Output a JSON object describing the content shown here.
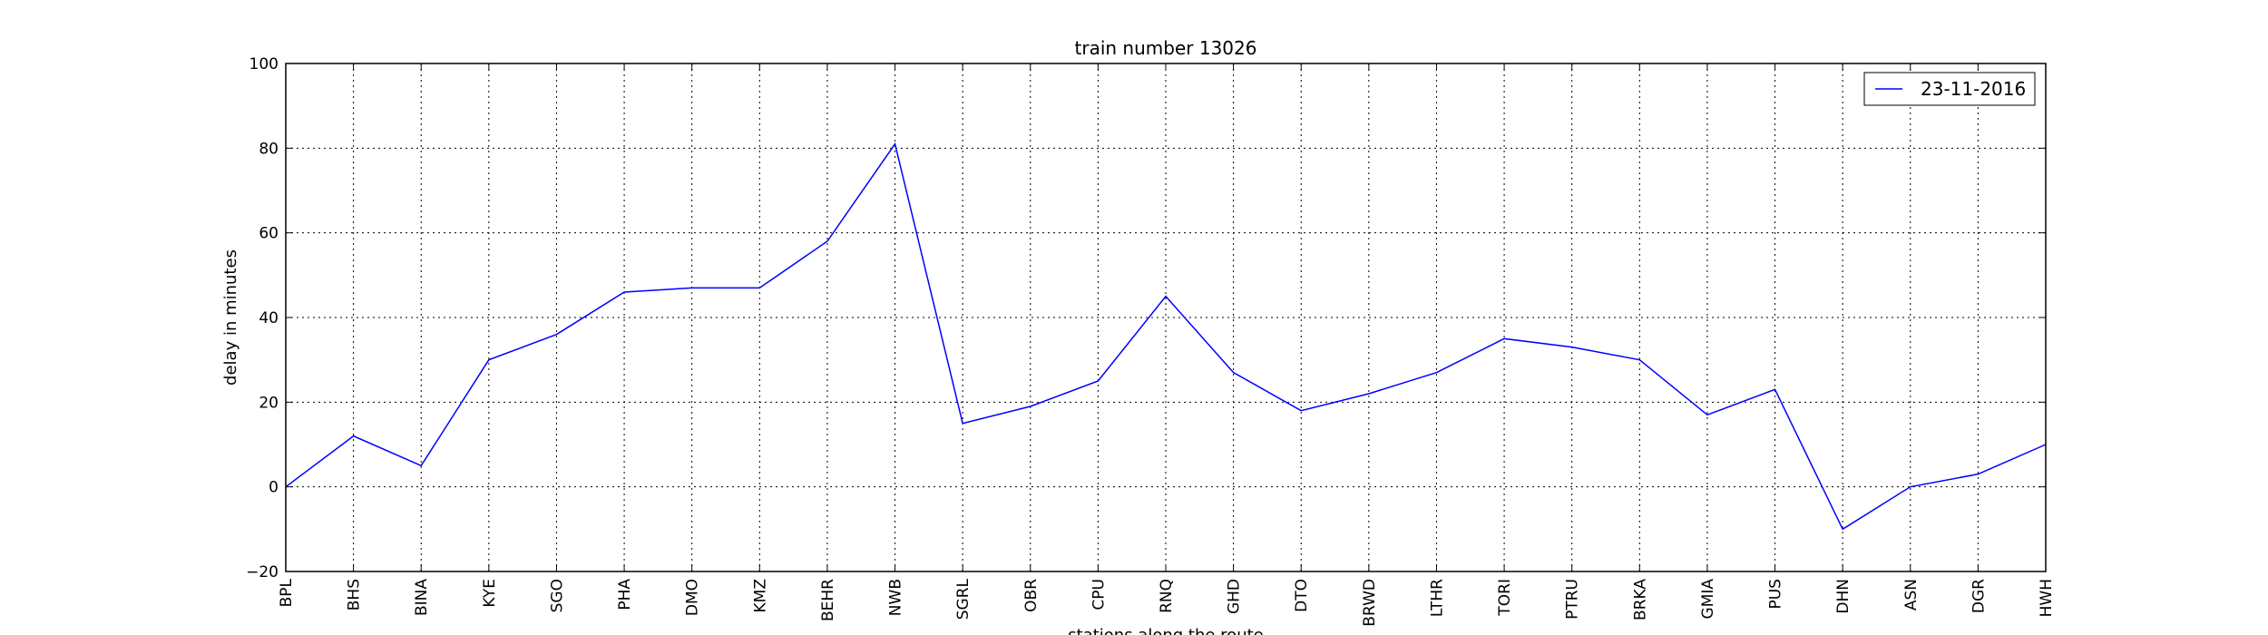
{
  "chart_data": {
    "type": "line",
    "title": "train number 13026",
    "xlabel": "stations along the route",
    "ylabel": "delay in minutes",
    "ylim": [
      -20,
      100
    ],
    "yticks": [
      -20,
      0,
      20,
      40,
      60,
      80,
      100
    ],
    "grid": true,
    "legend_position": "top-right",
    "categories": [
      "BPL",
      "BHS",
      "BINA",
      "KYE",
      "SGO",
      "PHA",
      "DMO",
      "KMZ",
      "BEHR",
      "NWB",
      "SGRL",
      "OBR",
      "CPU",
      "RNQ",
      "GHD",
      "DTO",
      "BRWD",
      "LTHR",
      "TORI",
      "PTRU",
      "BRKA",
      "GMIA",
      "PUS",
      "DHN",
      "ASN",
      "DGR",
      "HWH"
    ],
    "series": [
      {
        "name": "23-11-2016",
        "color": "#0000ff",
        "values": [
          0,
          12,
          5,
          30,
          36,
          46,
          47,
          47,
          58,
          81,
          15,
          19,
          25,
          45,
          27,
          18,
          22,
          27,
          35,
          33,
          30,
          17,
          23,
          -10,
          0,
          3,
          10
        ]
      }
    ]
  }
}
